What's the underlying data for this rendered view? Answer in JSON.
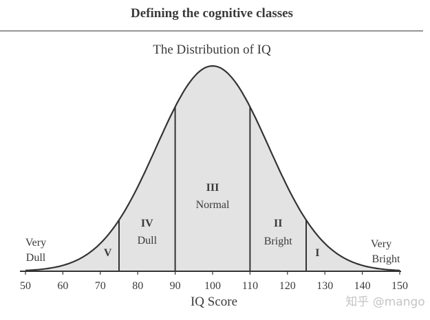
{
  "page": {
    "heading": "Defining the cognitive classes",
    "watermark": "知乎 @mango"
  },
  "chart_data": {
    "type": "area",
    "title": "The Distribution of IQ",
    "xlabel": "IQ Score",
    "ylabel": "",
    "distribution": {
      "kind": "normal",
      "mean": 100,
      "sd": 15
    },
    "xlim": [
      50,
      150
    ],
    "xticks": [
      50,
      60,
      70,
      80,
      90,
      100,
      110,
      120,
      130,
      140,
      150
    ],
    "dividers": [
      75,
      90,
      110,
      125
    ],
    "classes": [
      {
        "numeral": "V",
        "label": "",
        "center": 72
      },
      {
        "numeral": "IV",
        "label": "Dull",
        "center": 82.5
      },
      {
        "numeral": "III",
        "label": "Normal",
        "center": 100
      },
      {
        "numeral": "II",
        "label": "Bright",
        "center": 117.5
      },
      {
        "numeral": "I",
        "label": "",
        "center": 128
      }
    ],
    "tail_labels": {
      "left": [
        "Very",
        "Dull"
      ],
      "right": [
        "Very",
        "Bright"
      ]
    },
    "colors": {
      "fill": "#e3e3e3",
      "line": "#333333"
    }
  }
}
